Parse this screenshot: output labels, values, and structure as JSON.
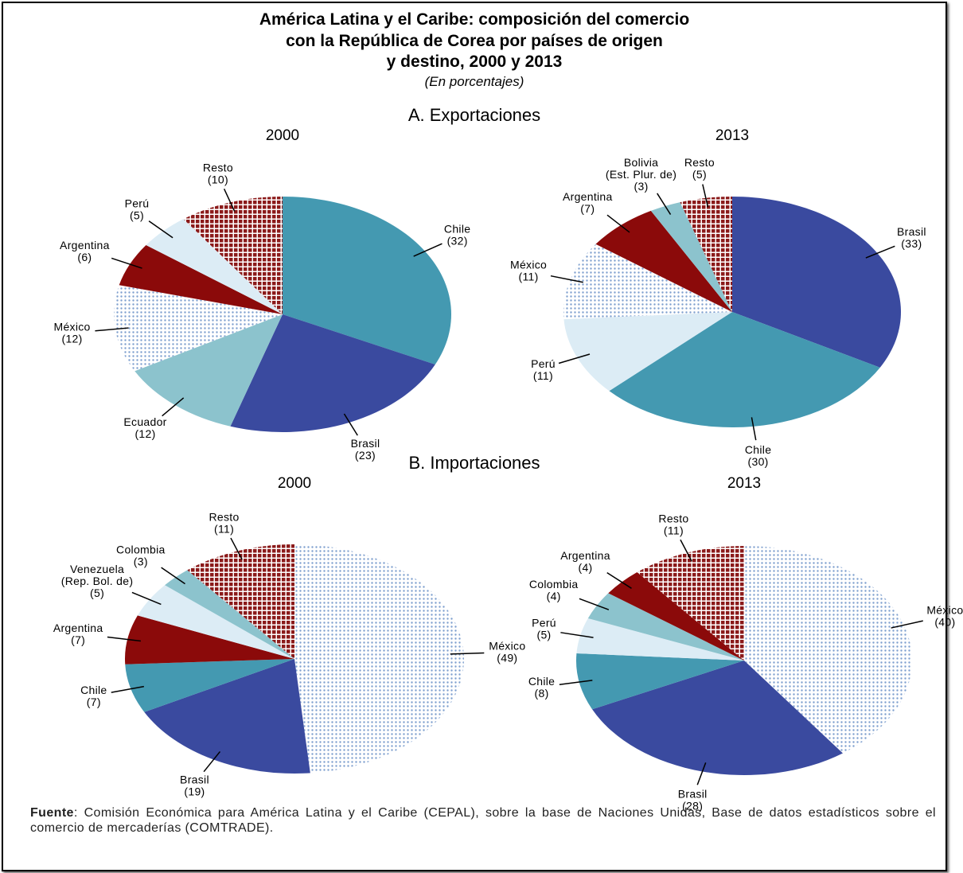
{
  "title": [
    "América Latina y el Caribe: composición del comercio",
    "con la República de Corea por países de origen",
    "y destino, 2000 y 2013"
  ],
  "subtitle": "(En porcentajes)",
  "sections": [
    "A. Exportaciones",
    "B. Importaciones"
  ],
  "source": {
    "label": "Fuente",
    "text": ": Comisión Económica para América Latina y el Caribe (CEPAL), sobre la base de Naciones Unidas, Base de datos estadísticos sobre el comercio de mercaderías (COMTRADE)."
  },
  "chart_data": [
    {
      "type": "pie",
      "title": "2000",
      "categories": [
        "Chile",
        "Brasil",
        "Ecuador",
        "México",
        "Argentina",
        "Perú",
        "Resto"
      ],
      "values": [
        32,
        23,
        12,
        12,
        6,
        5,
        10
      ],
      "value_labels": [
        "(32)",
        "(23)",
        "(12)",
        "(12)",
        "(6)",
        "(5)",
        "(10)"
      ],
      "colors": [
        "#4499b1",
        "#3a4a9f",
        "#8cc3cd",
        "#9fb8dc",
        "#8b0a0a",
        "#dcecf5",
        "#8b1a1a"
      ],
      "patterns": [
        null,
        null,
        null,
        "dots",
        null,
        null,
        "checks"
      ]
    },
    {
      "type": "pie",
      "title": "2013",
      "categories": [
        "Brasil",
        "Chile",
        "Perú",
        "México",
        "Argentina",
        "Bolivia\n(Est. Plur. de)",
        "Resto"
      ],
      "values": [
        33,
        30,
        11,
        11,
        7,
        3,
        5
      ],
      "value_labels": [
        "(33)",
        "(30)",
        "(11)",
        "(11)",
        "(7)",
        "(3)",
        "(5)"
      ],
      "colors": [
        "#3a4a9f",
        "#4499b1",
        "#dcecf5",
        "#9fb8dc",
        "#8b0a0a",
        "#8cc3cd",
        "#8b1a1a"
      ],
      "patterns": [
        null,
        null,
        null,
        "dots",
        null,
        null,
        "checks"
      ]
    },
    {
      "type": "pie",
      "title": "2000",
      "categories": [
        "México",
        "Brasil",
        "Chile",
        "Argentina",
        "Venezuela\n(Rep. Bol. de)",
        "Colombia",
        "Resto"
      ],
      "values": [
        49,
        19,
        7,
        7,
        5,
        3,
        11
      ],
      "value_labels": [
        "(49)",
        "(19)",
        "(7)",
        "(7)",
        "(5)",
        "(3)",
        "(11)"
      ],
      "colors": [
        "#9fb8dc",
        "#3a4a9f",
        "#4499b1",
        "#8b0a0a",
        "#dcecf5",
        "#8cc3cd",
        "#8b1a1a"
      ],
      "patterns": [
        "dots",
        null,
        null,
        null,
        null,
        null,
        "checks"
      ]
    },
    {
      "type": "pie",
      "title": "2013",
      "categories": [
        "México",
        "Brasil",
        "Chile",
        "Perú",
        "Colombia",
        "Argentina",
        "Resto"
      ],
      "values": [
        40,
        28,
        8,
        5,
        4,
        4,
        11
      ],
      "value_labels": [
        "(40)",
        "(28)",
        "(8)",
        "(5)",
        "(4)",
        "(4)",
        "(11)"
      ],
      "colors": [
        "#9fb8dc",
        "#3a4a9f",
        "#4499b1",
        "#dcecf5",
        "#8cc3cd",
        "#8b0a0a",
        "#8b1a1a"
      ],
      "patterns": [
        "dots",
        null,
        null,
        null,
        null,
        null,
        "checks"
      ]
    }
  ]
}
